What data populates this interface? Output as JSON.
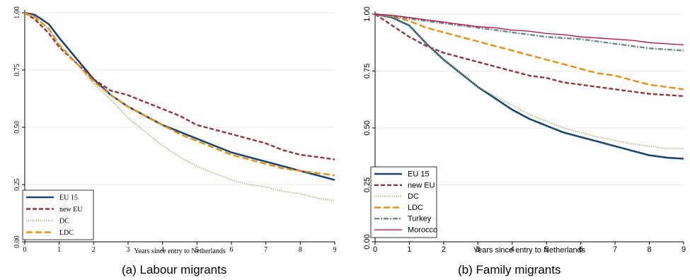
{
  "chart_data": [
    {
      "type": "line",
      "caption": "(a)  Labour migrants",
      "xlabel": "Years since entry to Netherlands",
      "ylabel": "",
      "xlim": [
        0,
        9
      ],
      "ylim": [
        0,
        1
      ],
      "xticks": [
        "0",
        "1",
        "2",
        "3",
        "4",
        "5",
        "6",
        "7",
        "8",
        "9"
      ],
      "yticks": [
        "0.00",
        "0.25",
        "0.50",
        "0.75",
        "1.00"
      ],
      "grid": "horizontal",
      "legend_position": "bottom-left",
      "series": [
        {
          "name": "EU 15",
          "color": "#1a476f",
          "dash": "solid",
          "x": [
            0,
            0.3,
            0.7,
            1,
            1.5,
            2,
            2.5,
            3,
            3.5,
            4,
            4.5,
            5,
            5.5,
            6,
            6.5,
            7,
            7.5,
            8,
            8.5,
            9
          ],
          "y": [
            1.0,
            0.99,
            0.95,
            0.89,
            0.8,
            0.71,
            0.64,
            0.59,
            0.55,
            0.51,
            0.48,
            0.45,
            0.42,
            0.39,
            0.37,
            0.35,
            0.33,
            0.31,
            0.29,
            0.27
          ]
        },
        {
          "name": "new EU",
          "color": "#90353b",
          "dash": "dashed",
          "x": [
            0,
            0.3,
            0.7,
            1,
            1.5,
            2,
            2.5,
            3,
            3.5,
            4,
            4.5,
            5,
            5.5,
            6,
            6.5,
            7,
            7.5,
            8,
            8.5,
            9
          ],
          "y": [
            1.0,
            0.97,
            0.91,
            0.85,
            0.78,
            0.71,
            0.66,
            0.64,
            0.61,
            0.58,
            0.55,
            0.51,
            0.49,
            0.47,
            0.45,
            0.43,
            0.4,
            0.38,
            0.37,
            0.36
          ]
        },
        {
          "name": "DC",
          "color": "#9bab73",
          "dash": "dotted",
          "x": [
            0,
            0.3,
            0.7,
            1,
            1.5,
            2,
            2.5,
            3,
            3.5,
            4,
            4.5,
            5,
            5.5,
            6,
            6.5,
            7,
            7.5,
            8,
            8.5,
            9
          ],
          "y": [
            1.0,
            0.98,
            0.93,
            0.86,
            0.78,
            0.69,
            0.62,
            0.54,
            0.48,
            0.42,
            0.37,
            0.33,
            0.3,
            0.27,
            0.25,
            0.24,
            0.22,
            0.21,
            0.19,
            0.18
          ]
        },
        {
          "name": "LDC",
          "color": "#e8900a",
          "dash": "longdash",
          "x": [
            0,
            0.3,
            0.7,
            1,
            1.5,
            2,
            2.5,
            3,
            3.5,
            4,
            4.5,
            5,
            5.5,
            6,
            6.5,
            7,
            7.5,
            8,
            8.5,
            9
          ],
          "y": [
            1.0,
            0.98,
            0.93,
            0.86,
            0.78,
            0.7,
            0.64,
            0.59,
            0.55,
            0.51,
            0.47,
            0.44,
            0.41,
            0.38,
            0.36,
            0.34,
            0.32,
            0.31,
            0.3,
            0.29
          ]
        }
      ]
    },
    {
      "type": "line",
      "caption": "(b)  Family migrants",
      "xlabel": "Years since entry to Netherlands",
      "ylabel": "",
      "xlim": [
        0,
        9
      ],
      "ylim": [
        0,
        1
      ],
      "xticks": [
        "0",
        "1",
        "2",
        "3",
        "4",
        "5",
        "6",
        "7",
        "8",
        "9"
      ],
      "yticks": [
        "0.00",
        "0.25",
        "0.50",
        "0.75",
        "1.00"
      ],
      "grid": "horizontal",
      "legend_position": "bottom-left",
      "series": [
        {
          "name": "EU 15",
          "color": "#1a476f",
          "dash": "solid",
          "x": [
            0,
            0.5,
            1,
            1.5,
            2,
            2.5,
            3,
            3.5,
            4,
            4.5,
            5,
            5.5,
            6,
            6.5,
            7,
            7.5,
            8,
            8.5,
            9
          ],
          "y": [
            1.0,
            0.985,
            0.95,
            0.87,
            0.8,
            0.74,
            0.68,
            0.63,
            0.58,
            0.54,
            0.51,
            0.48,
            0.46,
            0.44,
            0.42,
            0.4,
            0.38,
            0.37,
            0.365
          ]
        },
        {
          "name": "new EU",
          "color": "#90353b",
          "dash": "dashed",
          "x": [
            0,
            0.5,
            1,
            1.5,
            2,
            2.5,
            3,
            3.5,
            4,
            4.5,
            5,
            5.5,
            6,
            6.5,
            7,
            7.5,
            8,
            8.5,
            9
          ],
          "y": [
            1.0,
            0.95,
            0.9,
            0.86,
            0.83,
            0.81,
            0.79,
            0.77,
            0.75,
            0.73,
            0.72,
            0.7,
            0.69,
            0.68,
            0.67,
            0.66,
            0.65,
            0.645,
            0.64
          ]
        },
        {
          "name": "DC",
          "color": "#9bab73",
          "dash": "dotted",
          "x": [
            0,
            0.5,
            1,
            1.5,
            2,
            2.5,
            3,
            3.5,
            4,
            4.5,
            5,
            5.5,
            6,
            6.5,
            7,
            7.5,
            8,
            8.5,
            9
          ],
          "y": [
            1.0,
            0.985,
            0.95,
            0.87,
            0.8,
            0.74,
            0.68,
            0.64,
            0.6,
            0.56,
            0.53,
            0.5,
            0.48,
            0.46,
            0.445,
            0.43,
            0.42,
            0.41,
            0.41
          ]
        },
        {
          "name": "LDC",
          "color": "#e8900a",
          "dash": "longdash",
          "x": [
            0,
            0.5,
            1,
            1.5,
            2,
            2.5,
            3,
            3.5,
            4,
            4.5,
            5,
            5.5,
            6,
            6.5,
            7,
            7.5,
            8,
            8.5,
            9
          ],
          "y": [
            1.0,
            0.99,
            0.97,
            0.94,
            0.92,
            0.9,
            0.88,
            0.86,
            0.84,
            0.82,
            0.8,
            0.78,
            0.76,
            0.74,
            0.73,
            0.71,
            0.69,
            0.68,
            0.67
          ]
        },
        {
          "name": "Turkey",
          "color": "#6f8a8c",
          "dash": "dashdot",
          "x": [
            0,
            0.5,
            1,
            1.5,
            2,
            2.5,
            3,
            3.5,
            4,
            4.5,
            5,
            5.5,
            6,
            6.5,
            7,
            7.5,
            8,
            8.5,
            9
          ],
          "y": [
            1.0,
            0.99,
            0.98,
            0.97,
            0.96,
            0.95,
            0.94,
            0.93,
            0.92,
            0.91,
            0.9,
            0.895,
            0.89,
            0.88,
            0.87,
            0.86,
            0.85,
            0.845,
            0.84
          ]
        },
        {
          "name": "Morocco",
          "color": "#c10534",
          "dash": "solid-thin",
          "x": [
            0,
            0.5,
            1,
            1.5,
            2,
            2.5,
            3,
            3.5,
            4,
            4.5,
            5,
            5.5,
            6,
            6.5,
            7,
            7.5,
            8,
            8.5,
            9
          ],
          "y": [
            1.0,
            0.995,
            0.985,
            0.975,
            0.965,
            0.955,
            0.945,
            0.94,
            0.93,
            0.925,
            0.915,
            0.91,
            0.9,
            0.895,
            0.89,
            0.885,
            0.875,
            0.87,
            0.865
          ]
        }
      ]
    }
  ]
}
